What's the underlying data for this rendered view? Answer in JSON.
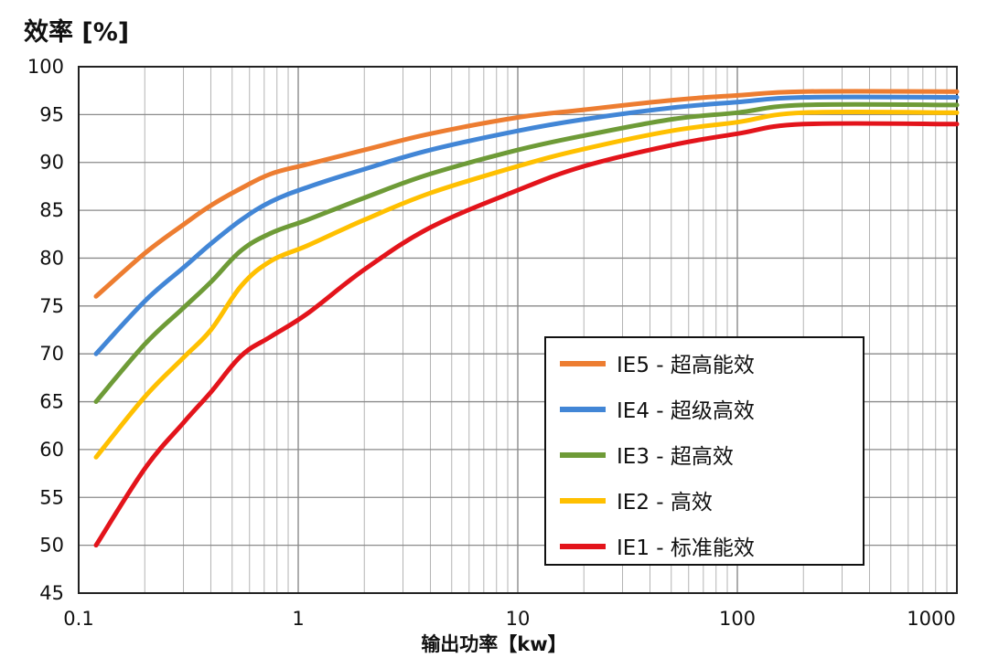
{
  "chart_data": {
    "type": "line",
    "ylabel": "效率 [%]",
    "xlabel": "输出功率【kw】",
    "x_scale": "log",
    "xlim": [
      0.1,
      1000
    ],
    "ylim": [
      45,
      100
    ],
    "x_ticks": [
      {
        "value": 0.1,
        "label": "0.1"
      },
      {
        "value": 1,
        "label": "1"
      },
      {
        "value": 10,
        "label": "10"
      },
      {
        "value": 100,
        "label": "100"
      },
      {
        "value": 1000,
        "label": "1000"
      }
    ],
    "y_ticks": [
      45,
      50,
      55,
      60,
      65,
      70,
      75,
      80,
      85,
      90,
      95,
      100
    ],
    "grid": true,
    "legend_position": "lower-right",
    "series": [
      {
        "name": "IE5 - 超高能效",
        "color": "#ED7D31",
        "x": [
          0.12,
          0.2,
          0.3,
          0.4,
          0.55,
          0.75,
          1.1,
          2,
          4,
          10,
          20,
          50,
          100,
          200,
          1000
        ],
        "y": [
          76,
          80.5,
          83.5,
          85.5,
          87.3,
          88.8,
          89.8,
          91.3,
          93,
          94.7,
          95.5,
          96.5,
          97,
          97.4,
          97.4
        ]
      },
      {
        "name": "IE4 - 超级高效",
        "color": "#4286D6",
        "x": [
          0.12,
          0.2,
          0.3,
          0.4,
          0.55,
          0.75,
          1.1,
          2,
          4,
          10,
          20,
          50,
          100,
          200,
          1000
        ],
        "y": [
          70,
          75.5,
          79,
          81.5,
          84,
          85.9,
          87.4,
          89.3,
          91.3,
          93.3,
          94.5,
          95.7,
          96.3,
          96.8,
          96.8
        ]
      },
      {
        "name": "IE3 - 超高效",
        "color": "#6E9B37",
        "x": [
          0.12,
          0.2,
          0.3,
          0.4,
          0.55,
          0.75,
          1.1,
          2,
          4,
          10,
          20,
          50,
          100,
          200,
          1000
        ],
        "y": [
          65,
          71,
          74.8,
          77.5,
          80.8,
          82.6,
          84,
          86.3,
          88.8,
          91.3,
          92.8,
          94.5,
          95.2,
          96,
          96
        ]
      },
      {
        "name": "IE2 - 高效",
        "color": "#FFC000",
        "x": [
          0.12,
          0.2,
          0.3,
          0.4,
          0.55,
          0.75,
          1.1,
          2,
          4,
          10,
          20,
          50,
          100,
          200,
          1000
        ],
        "y": [
          59.2,
          65.5,
          69.6,
          72.5,
          77.1,
          79.7,
          81.3,
          84,
          86.8,
          89.6,
          91.4,
          93.3,
          94.2,
          95.2,
          95.2
        ]
      },
      {
        "name": "IE1 - 标准能效",
        "color": "#E3141B",
        "x": [
          0.12,
          0.2,
          0.3,
          0.4,
          0.55,
          0.75,
          1.1,
          2,
          4,
          10,
          20,
          50,
          100,
          200,
          1000
        ],
        "y": [
          50,
          58,
          62.8,
          66,
          69.8,
          71.8,
          74.2,
          78.8,
          83.2,
          87.1,
          89.6,
          91.8,
          93,
          94,
          94
        ]
      }
    ]
  }
}
